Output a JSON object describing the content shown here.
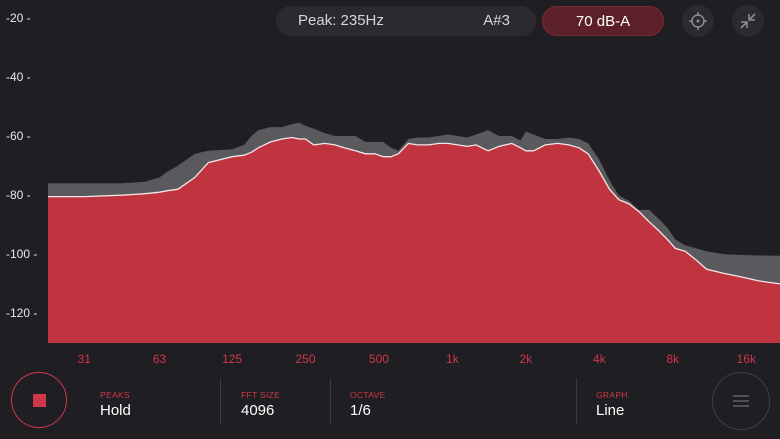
{
  "header": {
    "peak_text": "Peak: 235Hz",
    "note_text": "A#3",
    "level_text": "70 dB-A",
    "target_icon": "crosshair-icon",
    "fullscreen_icon": "collapse-arrows-icon"
  },
  "colors": {
    "accent": "#d0364a",
    "fill": "#c0343f",
    "peak_fill": "#5a5a5e",
    "background": "#1f1f23"
  },
  "chart_data": {
    "type": "area",
    "title": "",
    "xlabel": "",
    "ylabel": "",
    "x_scale": "log",
    "x_tick_labels": [
      "31",
      "63",
      "125",
      "250",
      "500",
      "1k",
      "2k",
      "4k",
      "8k",
      "16k"
    ],
    "x_tick_values": [
      31,
      63,
      125,
      250,
      500,
      1000,
      2000,
      4000,
      8000,
      16000
    ],
    "y_tick_labels": [
      "-20 -",
      "-40 -",
      "-60 -",
      "-80 -",
      "-100 -",
      "-120 -"
    ],
    "y_tick_values": [
      -20,
      -40,
      -60,
      -80,
      -100,
      -120
    ],
    "xlim": [
      22,
      22000
    ],
    "ylim": [
      -130,
      -14
    ],
    "grid": false,
    "series": [
      {
        "x": [
          22,
          31,
          44,
          55,
          63,
          68,
          75,
          88,
          100,
          125,
          140,
          150,
          160,
          180,
          200,
          220,
          235,
          250,
          270,
          300,
          330,
          360,
          400,
          440,
          480,
          520,
          560,
          600,
          660,
          720,
          800,
          880,
          960,
          1050,
          1150,
          1250,
          1400,
          1550,
          1750,
          1900,
          2000,
          2150,
          2400,
          2700,
          3000,
          3300,
          3600,
          4000,
          4400,
          4800,
          5300,
          5800,
          6400,
          7000,
          7600,
          8200,
          9000,
          10000,
          11000,
          13000,
          15000,
          18000,
          22000
        ],
        "values": [
          -76,
          -76,
          -76,
          -75.5,
          -74,
          -72,
          -70,
          -66,
          -65,
          -64.5,
          -63,
          -60,
          -58,
          -57,
          -57,
          -56,
          -55.5,
          -56.5,
          -57.5,
          -59,
          -60,
          -60,
          -60,
          -62,
          -62,
          -62,
          -64,
          -65,
          -61,
          -60.5,
          -60.5,
          -60,
          -59.5,
          -60,
          -60.5,
          -59.5,
          -58,
          -60,
          -60,
          -61.5,
          -58.5,
          -59.5,
          -61,
          -61,
          -60.5,
          -61,
          -62.5,
          -68,
          -75,
          -80,
          -82,
          -85,
          -85,
          -88,
          -91,
          -95,
          -97,
          -98,
          -99,
          -100,
          -100.2,
          -100.4,
          -100.5
        ]
      },
      {
        "x": [
          22,
          31,
          44,
          55,
          63,
          68,
          75,
          88,
          100,
          125,
          140,
          150,
          160,
          180,
          200,
          220,
          235,
          250,
          270,
          300,
          330,
          360,
          400,
          440,
          480,
          520,
          560,
          600,
          660,
          720,
          800,
          880,
          960,
          1050,
          1150,
          1250,
          1400,
          1550,
          1750,
          1900,
          2000,
          2150,
          2400,
          2700,
          3000,
          3300,
          3600,
          4000,
          4400,
          4800,
          5300,
          5800,
          6400,
          7000,
          7600,
          8200,
          9000,
          10000,
          11000,
          13000,
          15000,
          18000,
          22000
        ],
        "values": [
          -80.5,
          -80.5,
          -80,
          -79.5,
          -79,
          -78.5,
          -78,
          -74,
          -69,
          -67,
          -66.5,
          -65.5,
          -64,
          -62,
          -61,
          -60.5,
          -61,
          -61,
          -63,
          -62.5,
          -63,
          -64,
          -65,
          -66,
          -66,
          -67,
          -67,
          -66,
          -62.5,
          -63,
          -63,
          -62.5,
          -62.5,
          -63,
          -63.5,
          -63,
          -65,
          -63.5,
          -62.5,
          -64,
          -65,
          -65,
          -63,
          -62.5,
          -63,
          -64,
          -66,
          -72,
          -78,
          -81.5,
          -83,
          -85.5,
          -89,
          -92,
          -95,
          -98,
          -99,
          -102,
          -105,
          -106.5,
          -107.5,
          -109,
          -110
        ]
      }
    ]
  },
  "footer": {
    "record_icon": "stop-icon",
    "peaks_label": "PEAKS",
    "peaks_value": "Hold",
    "fft_label": "FFT SIZE",
    "fft_value": "4096",
    "octave_label": "OCTAVE",
    "octave_value": "1/6",
    "graph_label": "GRAPH",
    "graph_value": "Line",
    "menu_icon": "hamburger-menu-icon"
  }
}
